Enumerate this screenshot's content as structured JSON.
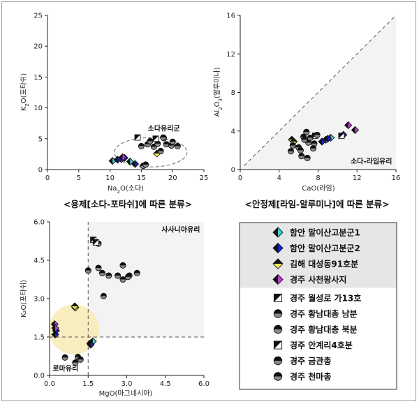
{
  "colors": {
    "cyan": "#3fd3d3",
    "blue": "#1f1ec8",
    "yellow": "#f3ee55",
    "magenta": "#c13ad6",
    "black": "#111111",
    "region": "#f3f3f3",
    "legend_band": "#e6e6e6",
    "halo": "#f6eab0"
  },
  "captions": {
    "chart1": "<용제[소다-포타쉬]에 따른 분류>",
    "chart2": "<안정제[라임-알루미나]에 따른 분류>"
  },
  "legend": {
    "items": [
      {
        "label": "함안 말이산고분군1",
        "icon": "diamond-cyan-half"
      },
      {
        "label": "함안 말이산고분군2",
        "icon": "diamond-blue-half"
      },
      {
        "label": "김해 대성동91호분",
        "icon": "diamond-yellow-half"
      },
      {
        "label": "경주 사천왕사지",
        "icon": "diamond-magenta-half"
      },
      {
        "label": "경주 월성로 가13호",
        "icon": "square-half"
      },
      {
        "label": "경주 황남대총 남분",
        "icon": "circle-top-half"
      },
      {
        "label": "경주 황남대총 북분",
        "icon": "circle-bottom-half"
      },
      {
        "label": "경주 안계리4호분",
        "icon": "square-diagonal-half"
      },
      {
        "label": "경주 금관총",
        "icon": "circle-gray-half"
      },
      {
        "label": "경주 천마총",
        "icon": "circle-left-half"
      }
    ]
  },
  "chart_data": [
    {
      "type": "scatter",
      "title": "<용제[소다-포타쉬]에 따른 분류>",
      "xlabel": "Na2O(소다)",
      "ylabel": "K2O(포타쉬)",
      "xlim": [
        0,
        25
      ],
      "ylim": [
        0,
        25
      ],
      "xticks": [
        0,
        5,
        10,
        15,
        20,
        25
      ],
      "yticks": [
        0,
        5,
        10,
        15,
        20,
        25
      ],
      "annotations": [
        "소다유리군"
      ],
      "series": [
        {
          "name": "함안 말이산고분군1",
          "marker": "cyan",
          "points": [
            [
              10.4,
              1.4
            ],
            [
              11.8,
              1.7
            ],
            [
              13.2,
              1.3
            ]
          ]
        },
        {
          "name": "함안 말이산고분군2",
          "marker": "blue",
          "points": [
            [
              11.2,
              1.6
            ],
            [
              12.3,
              1.9
            ],
            [
              14.0,
              0.9
            ]
          ]
        },
        {
          "name": "김해 대성동91호분",
          "marker": "yellow",
          "points": [
            [
              17.5,
              2.6
            ]
          ]
        },
        {
          "name": "경주 사천왕사지",
          "marker": "magenta",
          "points": [
            [
              12.0,
              2.0
            ]
          ]
        },
        {
          "name": "경주 월성로 가13호",
          "marker": "square",
          "points": [
            [
              14.4,
              5.2
            ]
          ]
        },
        {
          "name": "경주 황남대총 남분",
          "marker": "circle",
          "points": [
            [
              15.0,
              3.8
            ],
            [
              16.0,
              4.1
            ],
            [
              17.0,
              3.7
            ],
            [
              18.1,
              3.0
            ],
            [
              19.0,
              4.1
            ],
            [
              19.8,
              3.9
            ],
            [
              20.8,
              3.8
            ]
          ]
        },
        {
          "name": "경주 황남대총 북분",
          "marker": "circle",
          "points": [
            [
              16.4,
              4.6
            ],
            [
              17.6,
              4.2
            ],
            [
              18.6,
              5.1
            ],
            [
              20.0,
              4.5
            ]
          ]
        },
        {
          "name": "경주 안계리4호분",
          "marker": "square",
          "points": [
            [
              17.3,
              5.0
            ]
          ]
        },
        {
          "name": "경주 금관총",
          "marker": "circle",
          "points": [
            [
              15.3,
              0.6
            ],
            [
              15.7,
              0.8
            ]
          ]
        },
        {
          "name": "경주 천마총",
          "marker": "circle",
          "points": [
            [
              18.5,
              5.2
            ]
          ]
        }
      ]
    },
    {
      "type": "scatter",
      "title": "<안정제[라임-알루미나]에 따른 분류>",
      "xlabel": "CaO(라임)",
      "ylabel": "Al2O3(알루미나)",
      "xlim": [
        0,
        16
      ],
      "ylim": [
        0,
        16
      ],
      "xticks": [
        0,
        4,
        8,
        12,
        16
      ],
      "yticks": [
        0,
        4,
        8,
        12,
        16
      ],
      "annotations": [
        "소다-라임유리"
      ],
      "series": [
        {
          "name": "함안 말이산고분군1",
          "marker": "cyan",
          "points": [
            [
              8.8,
              3.1
            ],
            [
              9.3,
              3.3
            ]
          ]
        },
        {
          "name": "함안 말이산고분군2",
          "marker": "blue",
          "points": [
            [
              8.4,
              2.9
            ],
            [
              9.0,
              3.2
            ],
            [
              10.6,
              3.6
            ]
          ]
        },
        {
          "name": "김해 대성동91호분",
          "marker": "yellow",
          "points": [
            [
              5.3,
              3.1
            ],
            [
              5.5,
              2.9
            ]
          ]
        },
        {
          "name": "경주 사천왕사지",
          "marker": "magenta",
          "points": [
            [
              11.1,
              4.6
            ],
            [
              11.8,
              4.1
            ]
          ]
        },
        {
          "name": "경주 월성로 가13호",
          "marker": "square",
          "points": [
            [
              10.4,
              3.5
            ]
          ]
        },
        {
          "name": "경주 황남대총 남분",
          "marker": "circle",
          "points": [
            [
              6.5,
              3.4
            ],
            [
              6.8,
              3.9
            ],
            [
              7.0,
              2.8
            ],
            [
              7.6,
              2.7
            ],
            [
              5.4,
              2.5
            ],
            [
              6.0,
              2.3
            ]
          ]
        },
        {
          "name": "경주 황남대총 북분",
          "marker": "circle",
          "points": [
            [
              6.2,
              2.0
            ],
            [
              7.2,
              3.3
            ],
            [
              7.5,
              2.2
            ],
            [
              6.6,
              3.1
            ]
          ]
        },
        {
          "name": "경주 안계리4호분",
          "marker": "square",
          "points": [
            [
              7.7,
              3.5
            ]
          ]
        },
        {
          "name": "경주 금관총",
          "marker": "circle",
          "points": [
            [
              5.2,
              1.9
            ],
            [
              6.9,
              1.2
            ],
            [
              6.3,
              1.4
            ]
          ]
        },
        {
          "name": "경주 천마총",
          "marker": "circle",
          "points": [
            [
              7.9,
              3.6
            ]
          ]
        }
      ]
    },
    {
      "type": "scatter",
      "title": "",
      "xlabel": "MgO(마그네시아)",
      "ylabel": "K₂O(포타쉬)",
      "xlim": [
        0,
        6
      ],
      "ylim": [
        0,
        6
      ],
      "xticks": [
        "0.0",
        "1.5",
        "3.0",
        "4.5",
        "6.0"
      ],
      "yticks": [
        "0.0",
        "1.5",
        "3.0",
        "4.5",
        "6.0"
      ],
      "annotations": [
        "사사니아유리",
        "로마유리"
      ],
      "series": [
        {
          "name": "함안 말이산고분군1",
          "marker": "cyan",
          "points": [
            [
              1.58,
              1.25
            ],
            [
              1.68,
              1.33
            ]
          ]
        },
        {
          "name": "함안 말이산고분군2",
          "marker": "blue",
          "points": [
            [
              0.22,
              1.6
            ],
            [
              0.25,
              1.75
            ],
            [
              1.6,
              1.2
            ]
          ]
        },
        {
          "name": "김해 대성동91호분",
          "marker": "yellow",
          "points": [
            [
              1.0,
              2.65
            ],
            [
              0.98,
              2.7
            ]
          ]
        },
        {
          "name": "경주 사천왕사지",
          "marker": "magenta",
          "points": [
            [
              0.2,
              2.0
            ],
            [
              0.22,
              1.85
            ]
          ]
        },
        {
          "name": "경주 월성로 가13호",
          "marker": "square",
          "points": [
            [
              1.7,
              5.3
            ]
          ]
        },
        {
          "name": "경주 황남대총 남분",
          "marker": "circle",
          "points": [
            [
              1.5,
              4.1
            ],
            [
              1.9,
              4.2
            ],
            [
              2.3,
              3.9
            ],
            [
              2.65,
              3.9
            ],
            [
              2.85,
              4.3
            ],
            [
              3.1,
              3.9
            ]
          ]
        },
        {
          "name": "경주 황남대총 북분",
          "marker": "circle",
          "points": [
            [
              1.9,
              5.15
            ],
            [
              2.05,
              4.0
            ],
            [
              2.85,
              3.75
            ],
            [
              3.05,
              3.85
            ],
            [
              3.4,
              4.0
            ]
          ]
        },
        {
          "name": "경주 안계리4호분",
          "marker": "square",
          "points": [
            [
              1.8,
              5.2
            ]
          ]
        },
        {
          "name": "경주 금관총",
          "marker": "circle",
          "points": [
            [
              0.6,
              0.7
            ],
            [
              1.0,
              0.5
            ],
            [
              1.1,
              0.72
            ],
            [
              2.1,
              3.1
            ]
          ]
        },
        {
          "name": "경주 천마총",
          "marker": "circle",
          "points": [
            [
              1.2,
              0.62
            ]
          ]
        }
      ]
    }
  ]
}
